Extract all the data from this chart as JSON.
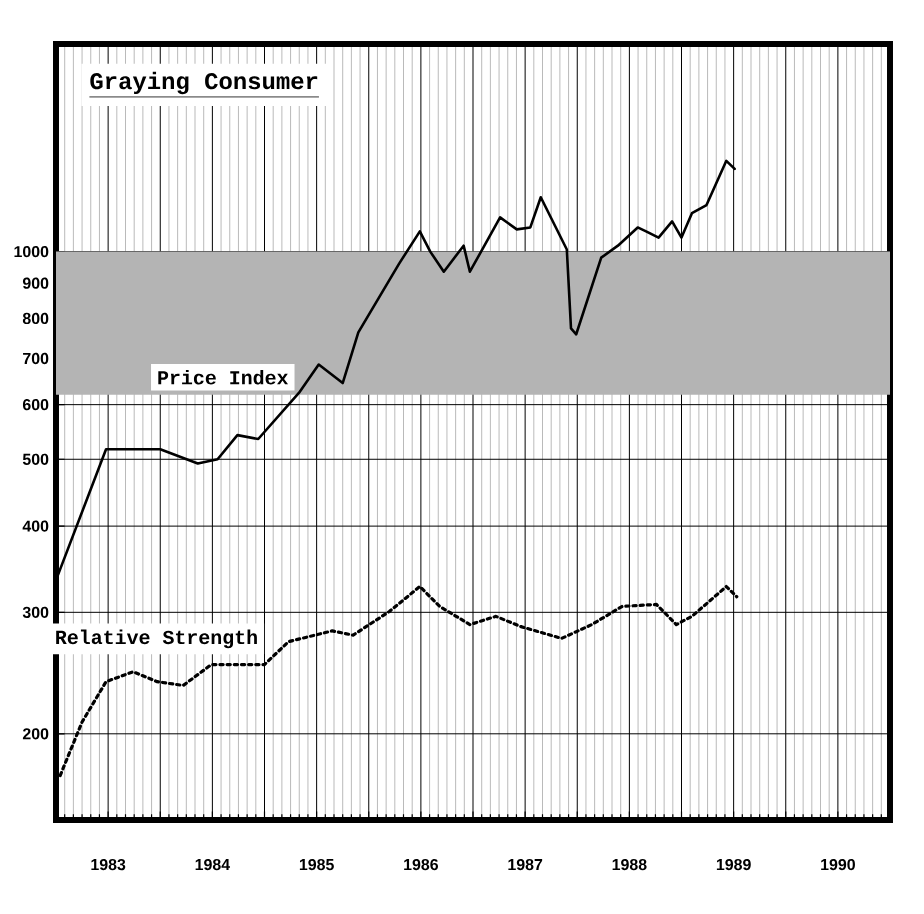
{
  "chart_data": {
    "type": "line",
    "title": "Graying Consumer",
    "x": [
      1983.0,
      1983.48,
      1983.87,
      1984.0,
      1984.36,
      1984.55,
      1984.74,
      1984.94,
      1985.33,
      1985.52,
      1985.75,
      1985.9,
      1986.29,
      1986.49,
      1986.59,
      1986.72,
      1986.91,
      1986.97,
      1987.26,
      1987.42,
      1987.55,
      1987.65,
      1987.9,
      1987.94,
      1987.99,
      1988.23,
      1988.39,
      1988.58,
      1988.66,
      1988.78,
      1988.91,
      1989.0,
      1989.1,
      1989.24,
      1989.43,
      1989.51
    ],
    "series": [
      {
        "name": "Price Index",
        "color": "#000000",
        "line_style": "solid",
        "values": [
          334,
          517,
          517,
          517,
          493,
          500,
          542,
          535,
          624,
          686,
          645,
          764,
          960,
          1070,
          1000,
          935,
          1020,
          935,
          1121,
          1077,
          1084,
          1199,
          1007,
          774,
          759,
          980,
          1020,
          1084,
          1070,
          1048,
          1106,
          1048,
          1137,
          1168,
          1354,
          1318
        ]
      },
      {
        "name": "Relative Strength",
        "color": "#000000",
        "line_style": "dotted",
        "x": [
          1983.04,
          1983.25,
          1983.48,
          1983.74,
          1983.97,
          1984.22,
          1984.49,
          1985.0,
          1985.23,
          1985.65,
          1985.85,
          1986.2,
          1986.49,
          1986.68,
          1986.97,
          1987.22,
          1987.46,
          1987.85,
          1988.14,
          1988.43,
          1988.76,
          1988.95,
          1989.1,
          1989.43,
          1989.53
        ],
        "values": [
          174,
          208,
          238,
          246,
          238,
          235,
          252,
          252,
          272,
          282,
          278,
          301,
          327,
          306,
          288,
          296,
          286,
          275,
          288,
          306,
          308,
          288,
          296,
          327,
          316
        ]
      }
    ],
    "log": "y",
    "grid": true,
    "xlim": [
      1983,
      1991
    ],
    "xticks": [
      {
        "value": 1983,
        "label": null
      },
      {
        "value": 1983.5,
        "label": "1983"
      },
      {
        "value": 1984,
        "label": null
      },
      {
        "value": 1984.5,
        "label": "1984"
      },
      {
        "value": 1985,
        "label": null
      },
      {
        "value": 1985.5,
        "label": "1985"
      },
      {
        "value": 1986,
        "label": null
      },
      {
        "value": 1986.5,
        "label": "1986"
      },
      {
        "value": 1987,
        "label": null
      },
      {
        "value": 1987.5,
        "label": "1987"
      },
      {
        "value": 1988,
        "label": null
      },
      {
        "value": 1988.5,
        "label": "1988"
      },
      {
        "value": 1989,
        "label": null
      },
      {
        "value": 1989.5,
        "label": "1989"
      },
      {
        "value": 1990,
        "label": null
      },
      {
        "value": 1990.5,
        "label": "1990"
      },
      {
        "value": 1991,
        "label": null
      }
    ],
    "ylim": [
      150,
      2000
    ],
    "yticks": [
      200,
      300,
      400,
      500,
      600,
      700,
      800,
      900,
      1000
    ],
    "bands": [
      {
        "axis": "y",
        "from": 620,
        "to": 1000,
        "color": "#b4b4b4"
      }
    ]
  }
}
